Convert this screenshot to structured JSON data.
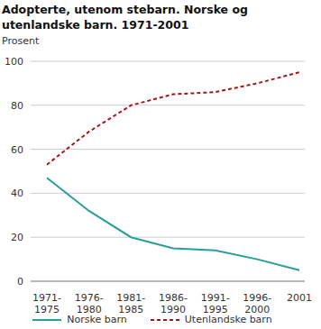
{
  "chart_data": {
    "type": "line",
    "title": "Adopterte, utenom stebarn. Norske og utenlandske barn. 1971-2001",
    "y_label": "Prosent",
    "categories": [
      "1971-1975",
      "1976-1980",
      "1981-1985",
      "1986-1990",
      "1991-1995",
      "1996-2000",
      "2001"
    ],
    "series": [
      {
        "name": "Norske barn",
        "color": "#2a9d9a",
        "line_style": "solid",
        "values": [
          47,
          32,
          20,
          15,
          14,
          10,
          5
        ]
      },
      {
        "name": "Utenlandske barn",
        "color": "#a01818",
        "line_style": "dashed",
        "values": [
          53,
          68,
          80,
          85,
          86,
          90,
          95
        ]
      }
    ],
    "ylim": [
      0,
      100
    ],
    "yticks": [
      0,
      20,
      40,
      60,
      80,
      100
    ],
    "grid": true,
    "legend": "bottom"
  }
}
